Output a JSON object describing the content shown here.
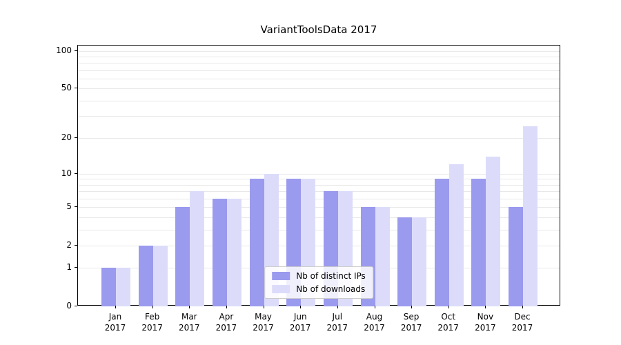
{
  "chart_data": {
    "type": "bar",
    "title": "VariantToolsData 2017",
    "categories": [
      "Jan 2017",
      "Feb 2017",
      "Mar 2017",
      "Apr 2017",
      "May 2017",
      "Jun 2017",
      "Jul 2017",
      "Aug 2017",
      "Sep 2017",
      "Oct 2017",
      "Nov 2017",
      "Dec 2017"
    ],
    "series": [
      {
        "name": "Nb of distinct IPs",
        "color": "#9a9aee",
        "values": [
          1,
          2,
          5,
          6,
          9,
          9,
          7,
          5,
          4,
          9,
          9,
          5
        ]
      },
      {
        "name": "Nb of downloads",
        "color": "#dcdcfa",
        "values": [
          1,
          2,
          7,
          6,
          10,
          9,
          7,
          5,
          4,
          12,
          14,
          25
        ]
      }
    ],
    "yticks": [
      0,
      1,
      2,
      5,
      10,
      20,
      50,
      100
    ],
    "minor_gridlines": [
      1,
      2,
      3,
      4,
      5,
      6,
      7,
      8,
      9,
      10,
      20,
      30,
      40,
      50,
      60,
      70,
      80,
      90,
      100
    ],
    "scale": "log(1+y)",
    "ylim": [
      0,
      110
    ],
    "grid": true,
    "legend_position": "lower center",
    "xlabel": "",
    "ylabel": ""
  }
}
